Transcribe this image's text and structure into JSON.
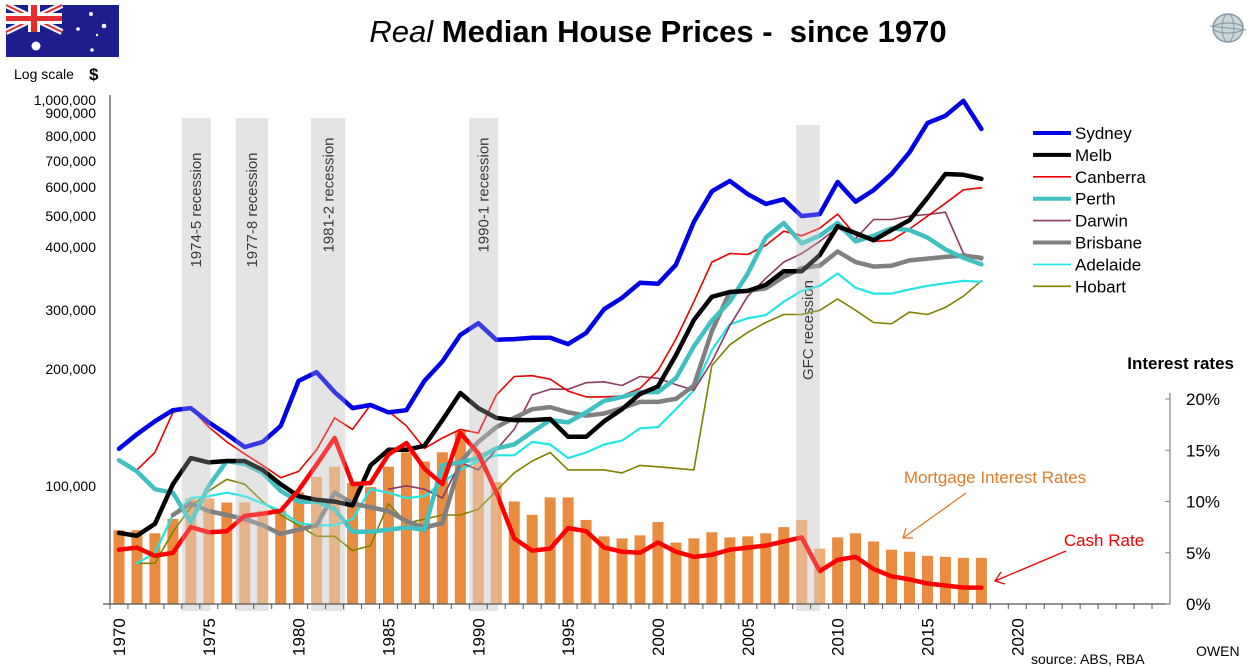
{
  "chart_data": {
    "type": "line",
    "title_italic": "Real",
    "title_rest": " Median House Prices -  since 1970",
    "left_axis": {
      "scale": "log",
      "label": "Log scale",
      "label_symbol": "$",
      "range": [
        49400,
        1000000
      ],
      "ticks": [
        {
          "value": 100000,
          "label": "100,000"
        },
        {
          "value": 200000,
          "label": "200,000"
        },
        {
          "value": 300000,
          "label": "300,000"
        },
        {
          "value": 400000,
          "label": "400,000"
        },
        {
          "value": 500000,
          "label": "500,000"
        },
        {
          "value": 600000,
          "label": "600,000"
        },
        {
          "value": 700000,
          "label": "700,000"
        },
        {
          "value": 800000,
          "label": "800,000"
        },
        {
          "value": 900000,
          "label": "900,000"
        },
        {
          "value": 1000000,
          "label": "1,000,000"
        }
      ]
    },
    "right_axis": {
      "label": "Interest rates",
      "range": [
        0,
        20
      ],
      "ticks": [
        {
          "value": 0,
          "label": "0%"
        },
        {
          "value": 5,
          "label": "5%"
        },
        {
          "value": 10,
          "label": "10%"
        },
        {
          "value": 15,
          "label": "15%"
        },
        {
          "value": 20,
          "label": "20%"
        }
      ]
    },
    "x_axis": {
      "range": [
        1969.5,
        2028.5
      ],
      "tick_labels": [
        "1970",
        "1975",
        "1980",
        "1985",
        "1990",
        "1995",
        "2000",
        "2005",
        "2010",
        "2015",
        "2020"
      ]
    },
    "recessions": [
      {
        "label": "1974-5 recession",
        "start": 1973.5,
        "end": 1975.1
      },
      {
        "label": "1977-8 recession",
        "start": 1976.5,
        "end": 1978.3
      },
      {
        "label": "1981-2 recession",
        "start": 1980.7,
        "end": 1982.6
      },
      {
        "label": "1990-1 recession",
        "start": 1989.5,
        "end": 1991.1
      },
      {
        "label": "GFC recession",
        "start": 2007.7,
        "end": 2009.0
      }
    ],
    "years": [
      1970,
      1971,
      1972,
      1973,
      1974,
      1975,
      1976,
      1977,
      1978,
      1979,
      1980,
      1981,
      1982,
      1983,
      1984,
      1985,
      1986,
      1987,
      1988,
      1989,
      1990,
      1991,
      1992,
      1993,
      1994,
      1995,
      1996,
      1997,
      1998,
      1999,
      2000,
      2001,
      2002,
      2003,
      2004,
      2005,
      2006,
      2007,
      2008,
      2009,
      2010,
      2011,
      2012,
      2013,
      2014,
      2015,
      2016,
      2017,
      2018
    ],
    "series": [
      {
        "name": "Sydney",
        "color": "#0000e6",
        "width": 4.5,
        "values": [
          124700,
          136000,
          147000,
          157000,
          159000,
          146000,
          136000,
          126000,
          130000,
          143000,
          187000,
          197000,
          175000,
          159000,
          162000,
          155000,
          157000,
          187000,
          210000,
          246000,
          264000,
          239000,
          240000,
          242000,
          242000,
          233000,
          249000,
          287000,
          307000,
          336000,
          334000,
          374000,
          483000,
          580000,
          617000,
          570000,
          538000,
          553000,
          500000,
          506000,
          613000,
          545000,
          584000,
          643000,
          732000,
          872000,
          910000,
          995000,
          841000
        ]
      },
      {
        "name": "Melb",
        "color": "#000000",
        "width": 4.5,
        "values": [
          75500,
          74200,
          79700,
          101000,
          118000,
          115000,
          116000,
          116000,
          110000,
          101000,
          94000,
          92000,
          91000,
          89000,
          113000,
          124000,
          124000,
          127000,
          148000,
          174000,
          159000,
          150000,
          148000,
          148000,
          149000,
          134000,
          134000,
          147000,
          158000,
          173000,
          181000,
          218000,
          269000,
          309000,
          318000,
          320000,
          332000,
          360000,
          360000,
          396000,
          471000,
          452000,
          433000,
          460000,
          488000,
          558000,
          643000,
          640000,
          625000
        ]
      },
      {
        "name": "Canberra",
        "color": "#ee0000",
        "width": 1.6,
        "values": [
          null,
          110000,
          122000,
          155000,
          159000,
          142000,
          130000,
          121000,
          113000,
          105000,
          109000,
          124000,
          150000,
          140000,
          162000,
          156000,
          143000,
          125000,
          133000,
          140000,
          137000,
          172000,
          192000,
          193000,
          189000,
          176000,
          170000,
          170000,
          171000,
          179000,
          199000,
          240000,
          300000,
          380000,
          400000,
          398000,
          420000,
          457000,
          445000,
          465000,
          506000,
          446000,
          430000,
          433000,
          463000,
          500000,
          540000,
          585000,
          592000
        ]
      },
      {
        "name": "Perth",
        "color": "#40c0c0",
        "width": 4.5,
        "values": [
          116500,
          109000,
          98000,
          96000,
          80500,
          100000,
          116000,
          114000,
          108000,
          97000,
          91000,
          91000,
          87000,
          76000,
          76000,
          77000,
          78000,
          77000,
          113000,
          115000,
          118000,
          125000,
          128000,
          138000,
          148000,
          146000,
          155000,
          166000,
          170000,
          175000,
          175000,
          190000,
          230000,
          268000,
          300000,
          355000,
          440000,
          480000,
          425000,
          445000,
          480000,
          430000,
          445000,
          465000,
          460000,
          440000,
          410000,
          390000,
          375000
        ]
      },
      {
        "name": "Darwin",
        "color": "#8b3a62",
        "width": 1.6,
        "values": [
          null,
          null,
          null,
          null,
          null,
          null,
          null,
          null,
          null,
          null,
          null,
          null,
          null,
          null,
          null,
          98000,
          100000,
          98000,
          93000,
          115000,
          110000,
          124000,
          140000,
          172000,
          178000,
          178000,
          185000,
          186000,
          182000,
          192000,
          190000,
          183000,
          177000,
          210000,
          260000,
          310000,
          345000,
          380000,
          400000,
          430000,
          467000,
          437000,
          490000,
          490000,
          500000,
          505000,
          512000,
          400000,
          385000
        ]
      },
      {
        "name": "Brisbane",
        "color": "#808080",
        "width": 4.5,
        "values": [
          null,
          null,
          null,
          84000,
          90000,
          86000,
          84000,
          82000,
          79000,
          75000,
          77000,
          79000,
          96000,
          90000,
          88000,
          86000,
          81000,
          78000,
          80000,
          115000,
          130000,
          142000,
          150000,
          158000,
          160000,
          155000,
          152000,
          154000,
          159000,
          165000,
          165000,
          168000,
          182000,
          252000,
          318000,
          320000,
          325000,
          348000,
          367000,
          372000,
          405000,
          380000,
          370000,
          372000,
          384000,
          388000,
          392000,
          395000,
          390000
        ]
      },
      {
        "name": "Adelaide",
        "color": "#22e6e6",
        "width": 2.2,
        "values": [
          null,
          63000,
          67000,
          84000,
          93000,
          94000,
          96000,
          94000,
          90000,
          86000,
          80000,
          79000,
          79000,
          82000,
          98000,
          96000,
          93000,
          94000,
          102000,
          110000,
          116000,
          120000,
          120000,
          130000,
          128000,
          118000,
          122000,
          128000,
          131000,
          141000,
          142000,
          158000,
          177000,
          225000,
          262000,
          272000,
          277000,
          300000,
          320000,
          330000,
          355000,
          326000,
          315000,
          315000,
          323000,
          330000,
          335000,
          340000,
          338000
        ]
      },
      {
        "name": "Hobart",
        "color": "#808000",
        "width": 1.6,
        "values": [
          null,
          63000,
          63000,
          76000,
          88000,
          97000,
          104000,
          101000,
          91000,
          84000,
          79000,
          74000,
          74000,
          68000,
          70000,
          90000,
          80000,
          82000,
          84000,
          84000,
          87000,
          97000,
          108000,
          116000,
          122000,
          110000,
          110000,
          110000,
          108000,
          113000,
          112000,
          111000,
          110000,
          205000,
          232000,
          250000,
          265000,
          278000,
          278000,
          285000,
          305000,
          285000,
          265000,
          263000,
          282000,
          278000,
          290000,
          310000,
          340000
        ]
      }
    ],
    "interest_series": [
      {
        "name": "Mortgage Interest Rates",
        "type": "bar",
        "color": "#e98c3f",
        "values": [
          7.2,
          7.2,
          6.9,
          8.3,
          10.3,
          10.3,
          9.9,
          9.9,
          9.1,
          9.1,
          10.9,
          12.4,
          13.4,
          11.8,
          11.4,
          13.4,
          14.8,
          13.9,
          14.8,
          16.9,
          14.8,
          11.9,
          10.0,
          8.7,
          10.4,
          10.4,
          8.2,
          6.6,
          6.4,
          6.7,
          8.0,
          6.0,
          6.4,
          7.0,
          6.5,
          6.6,
          6.9,
          7.5,
          8.2,
          5.4,
          6.5,
          6.9,
          6.1,
          5.3,
          5.1,
          4.7,
          4.6,
          4.5,
          4.5
        ]
      },
      {
        "name": "Cash Rate",
        "type": "line",
        "color": "#ff0000",
        "values": [
          5.3,
          5.5,
          4.7,
          5.0,
          7.5,
          7.0,
          7.1,
          8.6,
          8.8,
          9.1,
          11.1,
          13.6,
          16.2,
          11.7,
          11.8,
          14.6,
          15.7,
          13.2,
          11.7,
          16.7,
          14.7,
          10.9,
          6.4,
          5.2,
          5.4,
          7.4,
          7.1,
          5.5,
          5.1,
          5.0,
          6.0,
          5.1,
          4.6,
          4.8,
          5.3,
          5.5,
          5.7,
          6.1,
          6.5,
          3.2,
          4.3,
          4.6,
          3.4,
          2.7,
          2.4,
          2.0,
          1.8,
          1.6,
          1.6
        ]
      }
    ],
    "annotations": {
      "mortgage_label": "Mortgage Interest Rates",
      "cash_label": "Cash Rate",
      "mortgage_color": "#e07b2a",
      "cash_color": "#ee0000"
    },
    "legend_position": "top-right",
    "source": "source: ABS, RBA",
    "credit": "OWEN",
    "grid": false
  }
}
